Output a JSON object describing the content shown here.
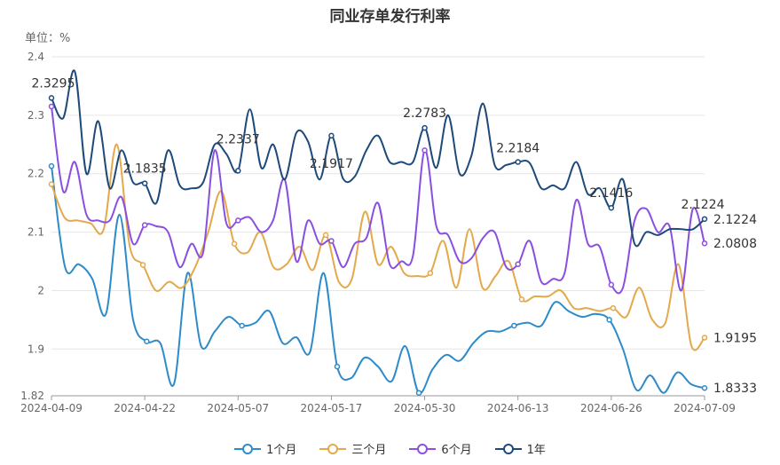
{
  "chart_data": {
    "type": "line",
    "title": "同业存单发行利率",
    "unit_label": "单位：%",
    "ylim": [
      1.82,
      2.4
    ],
    "yticks": [
      "1.82",
      "1.9",
      "2",
      "2.1",
      "2.2",
      "2.3",
      "2.4"
    ],
    "x_tick_labels": [
      "2024-04-09",
      "2024-04-22",
      "2024-05-07",
      "2024-05-17",
      "2024-05-30",
      "2024-06-13",
      "2024-06-26",
      "2024-07-09"
    ],
    "grid": true,
    "legend_position": "bottom",
    "series": [
      {
        "name": "1个月",
        "color": "#2e8bc9",
        "values": [
          2.213,
          2.04,
          2.045,
          2.02,
          1.96,
          2.13,
          1.95,
          1.913,
          1.91,
          1.84,
          2.03,
          1.905,
          1.93,
          1.955,
          1.94,
          1.945,
          1.965,
          1.91,
          1.92,
          1.895,
          2.03,
          1.87,
          1.85,
          1.885,
          1.87,
          1.845,
          1.905,
          1.825,
          1.865,
          1.89,
          1.88,
          1.91,
          1.93,
          1.93,
          1.94,
          1.945,
          1.94,
          1.98,
          1.965,
          1.955,
          1.96,
          1.95,
          1.9,
          1.83,
          1.855,
          1.825,
          1.86,
          1.84,
          1.8333
        ]
      },
      {
        "name": "三个月",
        "color": "#e3a94b",
        "values": [
          2.182,
          2.125,
          2.12,
          2.115,
          2.105,
          2.25,
          2.075,
          2.044,
          2.0,
          2.015,
          2.005,
          2.04,
          2.1,
          2.17,
          2.08,
          2.065,
          2.1,
          2.04,
          2.045,
          2.075,
          2.035,
          2.095,
          2.015,
          2.02,
          2.135,
          2.045,
          2.075,
          2.03,
          2.025,
          2.03,
          2.085,
          2.005,
          2.105,
          2.005,
          2.025,
          2.05,
          1.985,
          1.99,
          1.99,
          2.0,
          1.97,
          1.97,
          1.965,
          1.97,
          1.955,
          2.005,
          1.95,
          1.945,
          2.045,
          1.905,
          1.9195
        ]
      },
      {
        "name": "6个月",
        "color": "#8a4fe0",
        "values": [
          2.315,
          2.17,
          2.22,
          2.13,
          2.12,
          2.12,
          2.16,
          2.08,
          2.112,
          2.11,
          2.1,
          2.04,
          2.08,
          2.065,
          2.24,
          2.115,
          2.12,
          2.125,
          2.1,
          2.12,
          2.19,
          2.05,
          2.12,
          2.08,
          2.085,
          2.04,
          2.08,
          2.09,
          2.15,
          2.045,
          2.05,
          2.06,
          2.24,
          2.11,
          2.095,
          2.05,
          2.055,
          2.09,
          2.1,
          2.04,
          2.045,
          2.085,
          2.015,
          2.02,
          2.03,
          2.155,
          2.08,
          2.075,
          2.01,
          2.005,
          2.12,
          2.14,
          2.1,
          2.11,
          2.0,
          2.14,
          2.0808
        ]
      },
      {
        "name": "1年",
        "color": "#1d4a7a",
        "values": [
          2.3295,
          2.295,
          2.375,
          2.2,
          2.29,
          2.175,
          2.24,
          2.185,
          2.1835,
          2.15,
          2.24,
          2.18,
          2.175,
          2.185,
          2.25,
          2.2337,
          2.205,
          2.31,
          2.21,
          2.25,
          2.19,
          2.27,
          2.255,
          2.19,
          2.265,
          2.1917,
          2.195,
          2.24,
          2.265,
          2.22,
          2.22,
          2.22,
          2.2783,
          2.21,
          2.3,
          2.2,
          2.23,
          2.32,
          2.215,
          2.215,
          2.22,
          2.2184,
          2.175,
          2.18,
          2.175,
          2.22,
          2.165,
          2.175,
          2.1416,
          2.19,
          2.08,
          2.1,
          2.095,
          2.105,
          2.105,
          2.105,
          2.1224
        ]
      }
    ],
    "annotations": [
      {
        "text": "2.3295",
        "series": "1年",
        "x": "2024-04-09",
        "y": 2.3295
      },
      {
        "text": "2.1835",
        "series": "1年",
        "x": "2024-04-22",
        "y": 2.1835
      },
      {
        "text": "2.2337",
        "series": "1年",
        "x": "2024-05-07",
        "y": 2.2337
      },
      {
        "text": "2.1917",
        "series": "1年",
        "x": "2024-05-17",
        "y": 2.1917
      },
      {
        "text": "2.2783",
        "series": "1年",
        "x": "2024-05-30",
        "y": 2.2783
      },
      {
        "text": "2.2184",
        "series": "1年",
        "x": "2024-06-13",
        "y": 2.2184
      },
      {
        "text": "2.1416",
        "series": "1年",
        "x": "2024-06-26",
        "y": 2.1416
      },
      {
        "text": "2.1224",
        "series": "1年",
        "x": "2024-07-09",
        "y": 2.1224
      }
    ],
    "end_labels": [
      "2.1224",
      "2.0808",
      "1.9195",
      "1.8333"
    ]
  }
}
